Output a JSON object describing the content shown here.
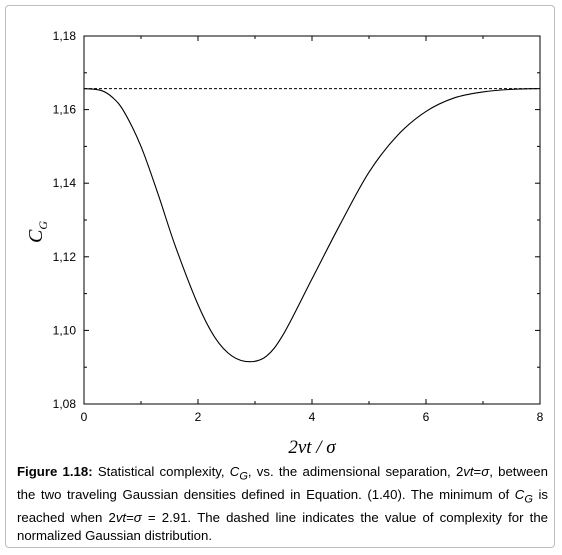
{
  "chart_data": {
    "type": "line",
    "xlim": [
      0,
      8
    ],
    "ylim": [
      1.08,
      1.18
    ],
    "x_ticks": [
      "0",
      "2",
      "4",
      "6",
      "8"
    ],
    "y_ticks": [
      "1,08",
      "1,10",
      "1,12",
      "1,14",
      "1,16",
      "1,18"
    ],
    "xlabel": "2vt / σ",
    "ylabel_main": "C",
    "ylabel_sub": "G",
    "series": [
      {
        "style": "solid",
        "x": [
          0,
          0.3,
          0.5,
          0.7,
          1.0,
          1.3,
          1.6,
          2.0,
          2.3,
          2.6,
          2.91,
          3.2,
          3.5,
          4.0,
          4.5,
          5.0,
          5.5,
          6.0,
          6.5,
          7.0,
          7.5,
          8.0
        ],
        "y": [
          1.1657,
          1.1652,
          1.1633,
          1.1595,
          1.15,
          1.137,
          1.123,
          1.107,
          1.098,
          1.093,
          1.0915,
          1.093,
          1.099,
          1.114,
          1.129,
          1.143,
          1.153,
          1.1595,
          1.1632,
          1.1648,
          1.1655,
          1.1657
        ]
      },
      {
        "style": "dashed",
        "x": [
          0,
          8
        ],
        "y": [
          1.1657,
          1.1657
        ]
      }
    ],
    "colors": {
      "line": "#000000",
      "axis": "#000000"
    }
  },
  "caption": {
    "label": "Figure 1.18:",
    "part1": " Statistical complexity, ",
    "var_c": "C",
    "var_sub": "G",
    "part2": ", vs. the adimensional separation, 2",
    "var_vt1": "vt",
    "part3": "=",
    "var_sigma1": "σ",
    "part4": ", between the two traveling Gaussian densities defined in Equation. (1.40). The minimum of ",
    "var_c2": "C",
    "var_sub2": "G",
    "part5": " is reached when 2",
    "var_vt2": "vt",
    "part6": "=",
    "var_sigma2": "σ",
    "part7": " = 2.91. The dashed line indicates the value of complexity for the normalized Gaussian distribution."
  }
}
